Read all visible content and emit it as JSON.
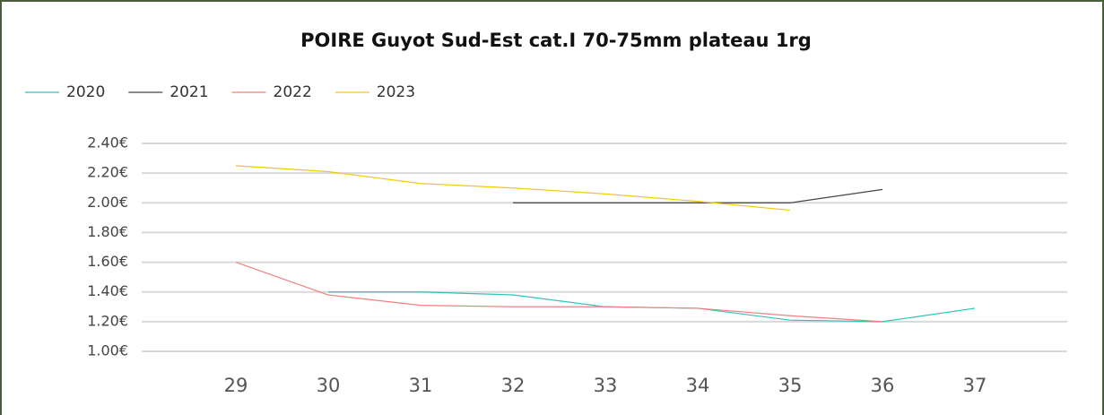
{
  "chart_data": {
    "type": "line",
    "title": "POIRE Guyot Sud-Est cat.I 70-75mm plateau 1rg",
    "categories": [
      "29",
      "30",
      "31",
      "32",
      "33",
      "34",
      "35",
      "36",
      "37"
    ],
    "series": [
      {
        "name": "2020",
        "color": "#2ec4b6",
        "values": [
          null,
          1.4,
          1.4,
          1.38,
          1.3,
          1.29,
          1.21,
          1.2,
          1.29
        ]
      },
      {
        "name": "2021",
        "color": "#444444",
        "values": [
          null,
          null,
          null,
          2.0,
          2.0,
          2.0,
          2.0,
          2.09,
          null
        ]
      },
      {
        "name": "2022",
        "color": "#f08080",
        "values": [
          1.6,
          1.38,
          1.31,
          1.3,
          1.3,
          1.29,
          1.24,
          1.2,
          null
        ]
      },
      {
        "name": "2023",
        "color": "#f2c811",
        "values": [
          2.25,
          2.21,
          2.13,
          2.1,
          2.06,
          2.01,
          1.95,
          null,
          null
        ]
      }
    ],
    "ylim": [
      1.0,
      2.4
    ],
    "yticks": [
      {
        "value": 1.0,
        "label": "1.00€"
      },
      {
        "value": 1.2,
        "label": "1.20€"
      },
      {
        "value": 1.4,
        "label": "1.40€"
      },
      {
        "value": 1.6,
        "label": "1.60€"
      },
      {
        "value": 1.8,
        "label": "1.80€"
      },
      {
        "value": 2.0,
        "label": "2.00€"
      },
      {
        "value": 2.2,
        "label": "2.20€"
      },
      {
        "value": 2.4,
        "label": "2.40€"
      }
    ],
    "grid": true,
    "legend": "top-left"
  }
}
